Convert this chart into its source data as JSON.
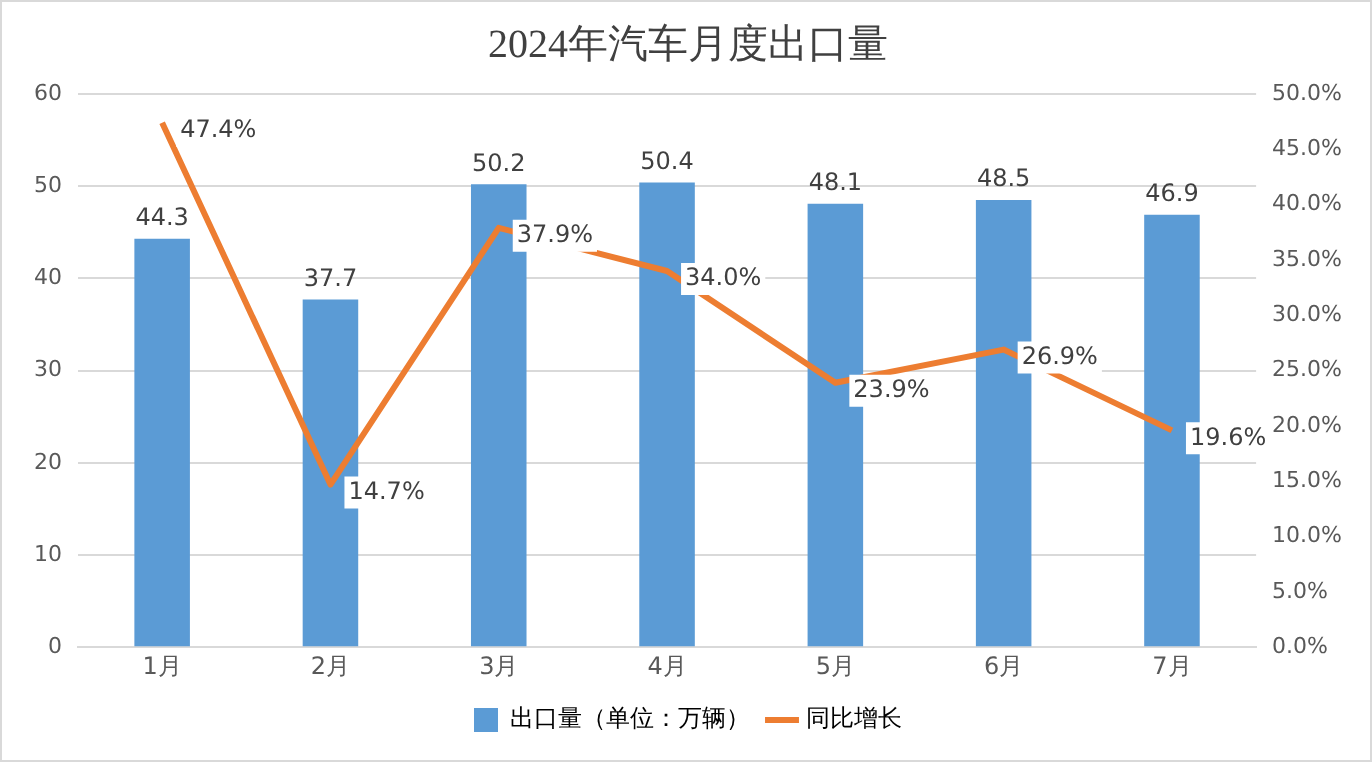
{
  "chart_data": {
    "type": "bar",
    "title": "2024年汽车月度出口量",
    "categories": [
      "1月",
      "2月",
      "3月",
      "4月",
      "5月",
      "6月",
      "7月"
    ],
    "series": [
      {
        "name": "出口量（单位：万辆）",
        "color": "#5b9bd5",
        "values": [
          44.3,
          37.7,
          50.2,
          50.4,
          48.1,
          48.5,
          46.9
        ],
        "value_labels": [
          "44.3",
          "37.7",
          "50.2",
          "50.4",
          "48.1",
          "48.5",
          "46.9"
        ]
      },
      {
        "name": "同比增长",
        "type": "line",
        "axis": "y2",
        "color": "#ed7d31",
        "values": [
          47.4,
          14.7,
          37.9,
          34.0,
          23.9,
          26.9,
          19.6
        ],
        "value_labels": [
          "47.4%",
          "14.7%",
          "37.9%",
          "34.0%",
          "23.9%",
          "26.9%",
          "19.6%"
        ]
      }
    ],
    "ylim": [
      0,
      60
    ],
    "yticks": [
      0,
      10,
      20,
      30,
      40,
      50,
      60
    ],
    "y2lim": [
      0,
      50
    ],
    "y2ticks": [
      {
        "value": 0,
        "label": "0.0%"
      },
      {
        "value": 5,
        "label": "5.0%"
      },
      {
        "value": 10,
        "label": "10.0%"
      },
      {
        "value": 15,
        "label": "15.0%"
      },
      {
        "value": 20,
        "label": "20.0%"
      },
      {
        "value": 25,
        "label": "25.0%"
      },
      {
        "value": 30,
        "label": "30.0%"
      },
      {
        "value": 35,
        "label": "35.0%"
      },
      {
        "value": 40,
        "label": "40.0%"
      },
      {
        "value": 45,
        "label": "45.0%"
      },
      {
        "value": 50,
        "label": "50.0%"
      }
    ],
    "grid": "y",
    "legend": "bottom",
    "marker": "none",
    "line_style": "solid"
  }
}
